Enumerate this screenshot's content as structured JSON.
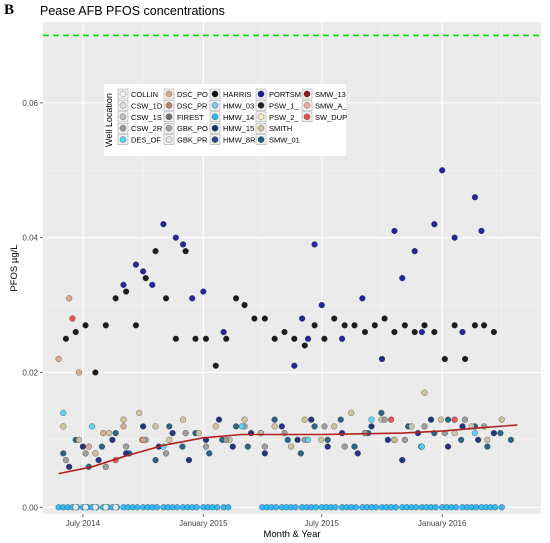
{
  "panel_letter": "B",
  "chart_data": {
    "type": "scatter",
    "title": "Pease AFB PFOS concentrations",
    "xlabel": "Month & Year",
    "ylabel": "PFOS µg/L",
    "x_type": "date",
    "xlim": [
      "2014-05-01",
      "2016-05-31"
    ],
    "ylim": [
      -0.001,
      0.072
    ],
    "y_ticks": [
      0.0,
      0.02,
      0.04,
      0.06
    ],
    "y_tick_labels": [
      "0.00",
      "0.02",
      "0.04",
      "0.06"
    ],
    "x_ticks": [
      "2014-07-01",
      "2015-01-01",
      "2015-07-01",
      "2016-01-01"
    ],
    "x_tick_labels": [
      "July 2014",
      "January 2015",
      "July 2015",
      "January 2016"
    ],
    "grid": true,
    "background": "#ebebeb",
    "reference_line": {
      "y": 0.07,
      "style": "dashed",
      "color": "#00dd00"
    },
    "trend_line": {
      "color": "#b22222",
      "x": [
        "2014-05-25",
        "2014-07-15",
        "2014-09-01",
        "2014-11-01",
        "2015-01-01",
        "2015-03-01",
        "2015-05-01",
        "2015-07-01",
        "2015-09-01",
        "2015-11-01",
        "2016-01-01",
        "2016-03-01",
        "2016-04-25"
      ],
      "y": [
        0.005,
        0.006,
        0.0075,
        0.0092,
        0.0103,
        0.0108,
        0.0108,
        0.0108,
        0.0109,
        0.011,
        0.0113,
        0.0118,
        0.0122
      ]
    },
    "legend_title": "Well Location",
    "legend_placement": "top-left",
    "series": [
      {
        "name": "COLLIN",
        "color": "#f2f2f2"
      },
      {
        "name": "CSW_1D",
        "color": "#dcdcdc"
      },
      {
        "name": "CSW_1S",
        "color": "#c0c0c0"
      },
      {
        "name": "CSW_2R",
        "color": "#9a9a9a"
      },
      {
        "name": "DES_OF",
        "color": "#5bd2f5"
      },
      {
        "name": "DSC_PO",
        "color": "#d9a98a"
      },
      {
        "name": "DSC_PR",
        "color": "#b3856a"
      },
      {
        "name": "FIREST",
        "color": "#6e6e6e"
      },
      {
        "name": "GBK_PO",
        "color": "#a3a3a3"
      },
      {
        "name": "GBK_PR",
        "color": "#e5e5e5"
      },
      {
        "name": "HARRIS",
        "color": "#111111"
      },
      {
        "name": "HMW_03",
        "color": "#7ec8e3"
      },
      {
        "name": "HMW_14",
        "color": "#29b6f6"
      },
      {
        "name": "HMW_15",
        "color": "#1c2a7a"
      },
      {
        "name": "HMW_8R",
        "color": "#2d4a8c"
      },
      {
        "name": "PORTSM",
        "color": "#1a1a9a"
      },
      {
        "name": "PSW_1_",
        "color": "#222222"
      },
      {
        "name": "PSW_2_",
        "color": "#efe6c8"
      },
      {
        "name": "SMITH",
        "color": "#cfc29c"
      },
      {
        "name": "SMW_01",
        "color": "#1f5f7f"
      },
      {
        "name": "SMW_13",
        "color": "#8b1a1a"
      },
      {
        "name": "SMW_A_",
        "color": "#f4a6a6"
      },
      {
        "name": "SW_DUP",
        "color": "#e05050"
      }
    ],
    "groups": [
      {
        "name": "PORTSM",
        "color": "#1a1a9a",
        "x": [
          "2014-09-01",
          "2014-09-20",
          "2014-10-01",
          "2014-10-15",
          "2014-11-01",
          "2014-11-20",
          "2014-12-01",
          "2014-12-15",
          "2015-01-01",
          "2015-02-01",
          "2015-05-20",
          "2015-06-01",
          "2015-06-10",
          "2015-06-20",
          "2015-07-01",
          "2015-08-01",
          "2015-09-01",
          "2015-10-01",
          "2015-10-20",
          "2015-11-01",
          "2015-11-20",
          "2015-12-01",
          "2015-12-20",
          "2016-01-01",
          "2016-01-20",
          "2016-02-01",
          "2016-02-20",
          "2016-03-01"
        ],
        "y": [
          0.033,
          0.036,
          0.035,
          0.033,
          0.042,
          0.04,
          0.039,
          0.031,
          0.032,
          0.026,
          0.021,
          0.028,
          0.025,
          0.039,
          0.03,
          0.025,
          0.031,
          0.022,
          0.041,
          0.034,
          0.038,
          0.026,
          0.042,
          0.05,
          0.04,
          0.026,
          0.046,
          0.041
        ]
      },
      {
        "name": "HARRIS",
        "color": "#111111",
        "x": [
          "2014-06-05",
          "2014-06-20",
          "2014-07-05",
          "2014-07-20",
          "2014-08-05",
          "2014-08-20",
          "2014-09-05",
          "2014-09-20",
          "2014-10-05",
          "2014-10-20",
          "2014-11-05",
          "2014-11-20",
          "2014-12-05",
          "2014-12-20",
          "2015-01-05",
          "2015-01-20",
          "2015-02-05",
          "2015-02-20",
          "2015-03-05",
          "2015-03-20",
          "2015-04-05",
          "2015-04-20",
          "2015-05-05",
          "2015-05-20",
          "2015-06-05",
          "2015-06-20",
          "2015-07-05",
          "2015-07-20",
          "2015-08-05",
          "2015-08-20",
          "2015-09-05",
          "2015-09-20",
          "2015-10-05",
          "2015-10-20",
          "2015-11-05",
          "2015-11-20",
          "2015-12-05",
          "2015-12-20",
          "2016-01-05",
          "2016-01-20",
          "2016-02-05",
          "2016-02-20",
          "2016-03-05",
          "2016-03-20"
        ],
        "y": [
          0.025,
          0.026,
          0.027,
          0.02,
          0.027,
          0.031,
          0.032,
          0.027,
          0.034,
          0.038,
          0.031,
          0.025,
          0.038,
          0.025,
          0.025,
          0.021,
          0.025,
          0.031,
          0.03,
          0.028,
          0.028,
          0.025,
          0.026,
          0.025,
          0.024,
          0.027,
          0.025,
          0.028,
          0.027,
          0.027,
          0.026,
          0.027,
          0.028,
          0.026,
          0.027,
          0.026,
          0.027,
          0.026,
          0.022,
          0.027,
          0.022,
          0.027,
          0.027,
          0.026
        ]
      },
      {
        "name": "SMW_01",
        "color": "#1f5f7f",
        "x": [
          "2014-06-01",
          "2014-06-20",
          "2014-07-10",
          "2014-07-30",
          "2014-08-20",
          "2014-09-10",
          "2014-09-30",
          "2014-10-20",
          "2014-11-10",
          "2014-11-30",
          "2014-12-20",
          "2015-01-10",
          "2015-01-30",
          "2015-02-20",
          "2015-03-10",
          "2015-03-30",
          "2015-04-20",
          "2015-05-10",
          "2015-05-30",
          "2015-06-20",
          "2015-07-10",
          "2015-07-30",
          "2015-08-20",
          "2015-09-10",
          "2015-09-30",
          "2015-10-20",
          "2015-11-10",
          "2015-11-30",
          "2015-12-20",
          "2016-01-10",
          "2016-01-30",
          "2016-02-20",
          "2016-03-10",
          "2016-03-30",
          "2016-04-15"
        ],
        "y": [
          0.008,
          0.01,
          0.006,
          0.009,
          0.011,
          0.008,
          0.01,
          0.007,
          0.012,
          0.009,
          0.011,
          0.008,
          0.01,
          0.012,
          0.009,
          0.011,
          0.013,
          0.01,
          0.008,
          0.012,
          0.01,
          0.013,
          0.009,
          0.011,
          0.014,
          0.01,
          0.012,
          0.009,
          0.011,
          0.013,
          0.01,
          0.012,
          0.009,
          0.011,
          0.01
        ]
      },
      {
        "name": "HMW_15",
        "color": "#1c2a7a",
        "x": [
          "2014-06-10",
          "2014-07-01",
          "2014-07-25",
          "2014-08-15",
          "2014-09-05",
          "2014-10-01",
          "2014-10-25",
          "2014-11-15",
          "2014-12-10",
          "2015-01-05",
          "2015-01-25",
          "2015-02-15",
          "2015-03-15",
          "2015-04-05",
          "2015-05-01",
          "2015-05-25",
          "2015-06-15",
          "2015-07-10",
          "2015-08-01",
          "2015-08-25",
          "2015-09-15",
          "2015-10-10",
          "2015-11-01",
          "2015-11-25",
          "2015-12-15",
          "2016-01-10",
          "2016-02-01",
          "2016-02-25",
          "2016-03-20"
        ],
        "y": [
          0.006,
          0.009,
          0.007,
          0.01,
          0.008,
          0.012,
          0.009,
          0.011,
          0.007,
          0.01,
          0.013,
          0.009,
          0.011,
          0.008,
          0.012,
          0.01,
          0.013,
          0.009,
          0.011,
          0.008,
          0.012,
          0.01,
          0.007,
          0.011,
          0.013,
          0.009,
          0.012,
          0.01,
          0.011
        ]
      },
      {
        "name": "SMITH",
        "color": "#cfc29c",
        "x": [
          "2014-06-01",
          "2014-06-25",
          "2014-07-20",
          "2014-08-10",
          "2014-09-01",
          "2014-09-25",
          "2014-10-20",
          "2014-11-10",
          "2014-12-01",
          "2014-12-25",
          "2015-01-20",
          "2015-02-10",
          "2015-03-05",
          "2015-03-30",
          "2015-04-20",
          "2015-05-15",
          "2015-06-05",
          "2015-06-30",
          "2015-07-20",
          "2015-08-15",
          "2015-09-05",
          "2015-09-30",
          "2015-10-20",
          "2015-11-15",
          "2015-12-05",
          "2015-12-30",
          "2016-01-20",
          "2016-02-15",
          "2016-03-10",
          "2016-04-01"
        ],
        "y": [
          0.012,
          0.01,
          0.008,
          0.011,
          0.013,
          0.014,
          0.012,
          0.01,
          0.013,
          0.011,
          0.012,
          0.01,
          0.013,
          0.011,
          0.012,
          0.009,
          0.013,
          0.01,
          0.012,
          0.014,
          0.011,
          0.013,
          0.01,
          0.012,
          0.017,
          0.013,
          0.011,
          0.012,
          0.01,
          0.013
        ]
      },
      {
        "name": "CSW_2R",
        "color": "#9a9a9a",
        "x": [
          "2014-06-05",
          "2014-07-05",
          "2014-08-05",
          "2014-09-05",
          "2014-10-05",
          "2014-11-05",
          "2014-12-05",
          "2015-01-05",
          "2015-02-05",
          "2015-03-05",
          "2015-04-05",
          "2015-05-05",
          "2015-06-05",
          "2015-07-05",
          "2015-08-05",
          "2015-09-05",
          "2015-10-05",
          "2015-11-05",
          "2015-12-05",
          "2016-01-05",
          "2016-02-05",
          "2016-03-05"
        ],
        "y": [
          0.007,
          0.008,
          0.006,
          0.009,
          0.01,
          0.008,
          0.011,
          0.009,
          0.01,
          0.012,
          0.009,
          0.011,
          0.01,
          0.012,
          0.009,
          0.011,
          0.013,
          0.01,
          0.012,
          0.011,
          0.013,
          0.012
        ]
      },
      {
        "name": "DSC_PO",
        "color": "#d9a98a",
        "x": [
          "2014-05-25",
          "2014-06-10",
          "2014-06-25",
          "2014-07-10",
          "2014-08-01",
          "2014-09-01",
          "2014-10-01"
        ],
        "y": [
          0.022,
          0.031,
          0.02,
          0.009,
          0.011,
          0.012,
          0.01
        ]
      },
      {
        "name": "SW_DUP",
        "color": "#e05050",
        "x": [
          "2014-06-15",
          "2014-08-20",
          "2015-10-15",
          "2016-01-20"
        ],
        "y": [
          0.028,
          0.007,
          0.013,
          0.013
        ]
      },
      {
        "name": "HMW_14",
        "color": "#29b6f6",
        "x": [
          "2014-05-25",
          "2014-06-01",
          "2014-06-08",
          "2014-06-15",
          "2014-06-22",
          "2014-07-01",
          "2014-07-08",
          "2014-07-15",
          "2014-07-22",
          "2014-08-01",
          "2014-08-08",
          "2014-08-15",
          "2014-08-22",
          "2014-09-01",
          "2014-09-08",
          "2014-09-15",
          "2014-09-22",
          "2014-10-01",
          "2014-10-08",
          "2014-10-15",
          "2014-10-22",
          "2014-11-01",
          "2014-11-08",
          "2014-11-15",
          "2014-11-22",
          "2014-12-01",
          "2014-12-08",
          "2014-12-15",
          "2014-12-22",
          "2015-01-01",
          "2015-01-08",
          "2015-01-15",
          "2015-01-22",
          "2015-02-01",
          "2015-02-08",
          "2015-04-01",
          "2015-04-08",
          "2015-04-15",
          "2015-04-22",
          "2015-05-01",
          "2015-05-08",
          "2015-05-15",
          "2015-05-22",
          "2015-06-01",
          "2015-06-08",
          "2015-06-15",
          "2015-06-22",
          "2015-07-01",
          "2015-07-08",
          "2015-07-15",
          "2015-07-22",
          "2015-08-01",
          "2015-08-08",
          "2015-08-15",
          "2015-08-22",
          "2015-09-01",
          "2015-09-08",
          "2015-09-15",
          "2015-09-22",
          "2015-10-01",
          "2015-10-08",
          "2015-10-15",
          "2015-10-22",
          "2015-11-01",
          "2015-11-08",
          "2015-11-15",
          "2015-11-22",
          "2015-12-01",
          "2015-12-08",
          "2015-12-15",
          "2015-12-22",
          "2016-01-01",
          "2016-01-08",
          "2016-01-15",
          "2016-01-22",
          "2016-02-01",
          "2016-02-08",
          "2016-02-15",
          "2016-02-22",
          "2016-03-01",
          "2016-03-08",
          "2016-03-15",
          "2016-03-22",
          "2016-04-01"
        ],
        "y": [
          0.0,
          0.0,
          0.0,
          0.0,
          0.0,
          0.0,
          0.0,
          0.0,
          0.0,
          0.0,
          0.0,
          0.0,
          0.0,
          0.0,
          0.0,
          0.0,
          0.0,
          0.0,
          0.0,
          0.0,
          0.0,
          0.0,
          0.0,
          0.0,
          0.0,
          0.0,
          0.0,
          0.0,
          0.0,
          0.0,
          0.0,
          0.0,
          0.0,
          0.0,
          0.0,
          0.0,
          0.0,
          0.0,
          0.0,
          0.0,
          0.0,
          0.0,
          0.0,
          0.0,
          0.0,
          0.0,
          0.0,
          0.0,
          0.0,
          0.0,
          0.0,
          0.0,
          0.0,
          0.0,
          0.0,
          0.0,
          0.0,
          0.0,
          0.0,
          0.0,
          0.0,
          0.0,
          0.0,
          0.0,
          0.0,
          0.0,
          0.0,
          0.0,
          0.0,
          0.0,
          0.0,
          0.0,
          0.0,
          0.0,
          0.0,
          0.0,
          0.0,
          0.0,
          0.0,
          0.0,
          0.0,
          0.0,
          0.0,
          0.0
        ]
      },
      {
        "name": "COLLIN",
        "color": "#f2f2f2",
        "x": [
          "2014-06-20",
          "2014-07-05",
          "2014-07-20",
          "2014-08-05",
          "2014-08-20"
        ],
        "y": [
          0.0,
          0.0,
          0.0,
          0.0,
          0.0
        ]
      },
      {
        "name": "DES_OF",
        "color": "#5bd2f5",
        "x": [
          "2014-06-01",
          "2014-07-15",
          "2014-11-01",
          "2015-03-01",
          "2015-06-10",
          "2015-09-15",
          "2015-12-01",
          "2016-02-20"
        ],
        "y": [
          0.014,
          0.012,
          0.009,
          0.012,
          0.01,
          0.013,
          0.009,
          0.011
        ]
      }
    ]
  }
}
